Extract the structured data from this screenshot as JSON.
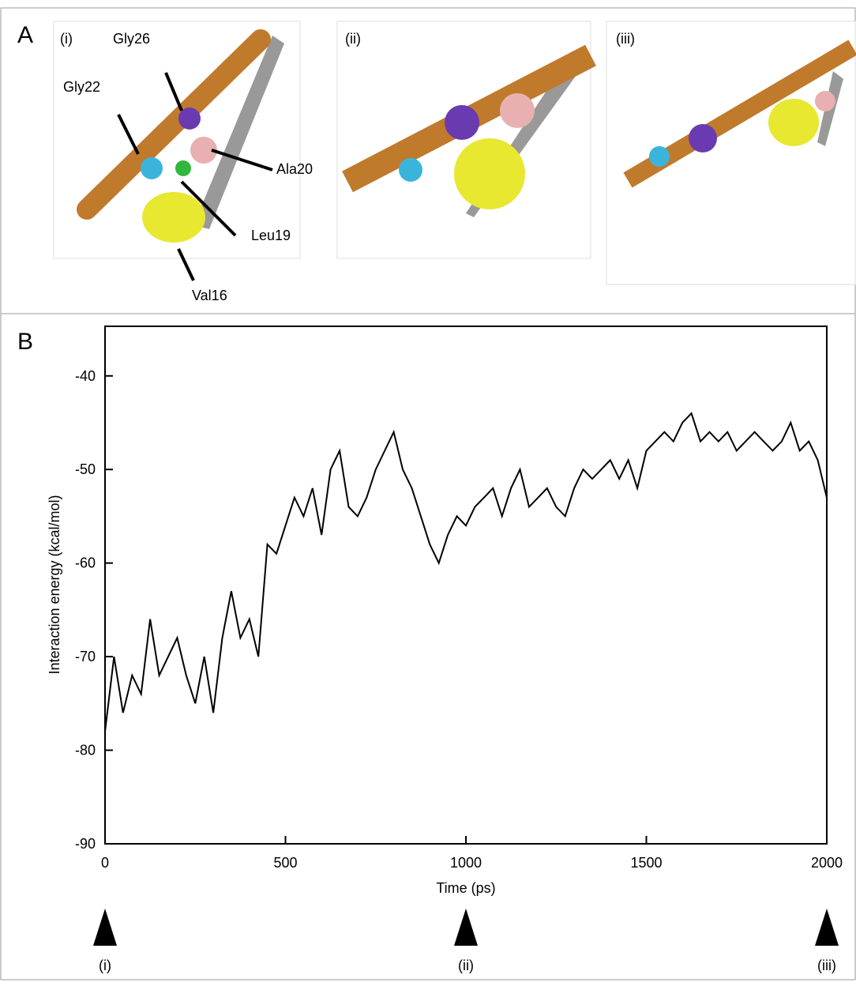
{
  "panel_a": {
    "label": "A",
    "views": [
      {
        "label": "(i)"
      },
      {
        "label": "(ii)"
      },
      {
        "label": "(iii)"
      }
    ],
    "residues": [
      "Gly26",
      "Gly22",
      "Ala20",
      "Leu19",
      "Val16"
    ]
  },
  "panel_b": {
    "label": "B"
  },
  "chart_data": {
    "type": "line",
    "x_label": "Time (ps)",
    "y_label": "Interaction energy (kcal/mol)",
    "color": "#000000",
    "x": [
      0,
      25,
      50,
      75,
      100,
      125,
      150,
      175,
      200,
      225,
      250,
      275,
      300,
      325,
      350,
      375,
      400,
      425,
      450,
      475,
      500,
      525,
      550,
      575,
      600,
      625,
      650,
      675,
      700,
      725,
      750,
      775,
      800,
      825,
      850,
      875,
      900,
      925,
      950,
      975,
      1000,
      1025,
      1050,
      1075,
      1100,
      1125,
      1150,
      1175,
      1200,
      1225,
      1250,
      1275,
      1300,
      1325,
      1350,
      1375,
      1400,
      1425,
      1450,
      1475,
      1500,
      1525,
      1550,
      1575,
      1600,
      1625,
      1650,
      1675,
      1700,
      1725,
      1750,
      1775,
      1800,
      1825,
      1850,
      1875,
      1900,
      1925,
      1950,
      1975,
      2000
    ],
    "values": [
      -78,
      -70,
      -76,
      -72,
      -74,
      -66,
      -72,
      -70,
      -68,
      -72,
      -75,
      -70,
      -76,
      -68,
      -63,
      -68,
      -66,
      -70,
      -58,
      -59,
      -56,
      -53,
      -55,
      -52,
      -57,
      -50,
      -48,
      -54,
      -55,
      -53,
      -50,
      -48,
      -46,
      -50,
      -52,
      -55,
      -58,
      -60,
      -57,
      -55,
      -56,
      -54,
      -53,
      -52,
      -55,
      -52,
      -50,
      -54,
      -53,
      -52,
      -54,
      -55,
      -52,
      -50,
      -51,
      -50,
      -49,
      -51,
      -49,
      -52,
      -48,
      -47,
      -46,
      -47,
      -45,
      -44,
      -47,
      -46,
      -47,
      -46,
      -48,
      -47,
      -46,
      -47,
      -48,
      -47,
      -45,
      -48,
      -47,
      -49,
      -53
    ],
    "xlim": [
      0,
      2000
    ],
    "xticks": [
      0,
      500,
      1000,
      1500,
      2000
    ],
    "ylim": [
      -90,
      -34.7
    ],
    "yticks": [
      -90,
      -80,
      -70,
      -60,
      -50,
      -40
    ],
    "markers": [
      {
        "x": 0,
        "label": "(i)"
      },
      {
        "x": 1000,
        "label": "(ii)"
      },
      {
        "x": 2000,
        "label": "(iii)"
      }
    ]
  }
}
